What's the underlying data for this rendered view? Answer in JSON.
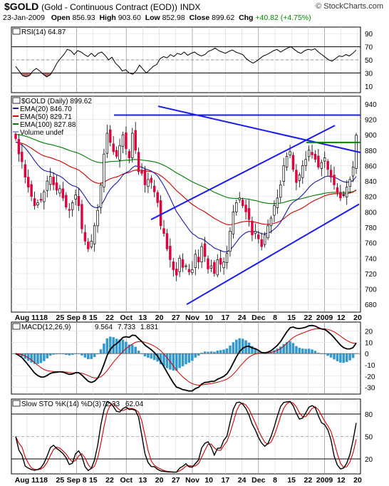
{
  "header": {
    "symbol": "$GOLD",
    "name": "(Gold - Continuous Contract (EOD))",
    "exchange": "INDX",
    "brand": "© StockCharts.com",
    "date": "23-Jan-2009",
    "open_label": "Open",
    "open": "856.93",
    "high_label": "High",
    "high": "903.60",
    "low_label": "Low",
    "low": "852.98",
    "close_label": "Close",
    "close": "899.62",
    "chg_label": "Chg",
    "chg": "+40.82 (+4.75%)"
  },
  "chart_data": [
    {
      "type": "line",
      "panel": "rsi",
      "legend": "RSI(14) 64.87",
      "y_ticks": [
        90,
        70,
        50,
        30,
        10
      ],
      "ylim": [
        0,
        100
      ],
      "reference_lines": [
        70,
        30
      ],
      "color": "#000000",
      "fill_overbought_oversold": "#a05050",
      "values": [
        40,
        33,
        26,
        24,
        26,
        33,
        37,
        33,
        28,
        24,
        27,
        35,
        45,
        52,
        58,
        66,
        64,
        58,
        64,
        62,
        58,
        55,
        60,
        55,
        60,
        62,
        57,
        50,
        54,
        45,
        40,
        33,
        35,
        30,
        28,
        33,
        42,
        36,
        30,
        35,
        40,
        43,
        52,
        55,
        53,
        58,
        55,
        60,
        58,
        62,
        57,
        60,
        62,
        58,
        56,
        58,
        63,
        65,
        68,
        64,
        62,
        60,
        63,
        65,
        62,
        60,
        58,
        52,
        48,
        45,
        48,
        52,
        56,
        58,
        61,
        64,
        66,
        62,
        65,
        68,
        70,
        66,
        62,
        60,
        64,
        66,
        65,
        67,
        62,
        58,
        54,
        50,
        48,
        52,
        56,
        55,
        58,
        56,
        60,
        65
      ]
    },
    {
      "type": "candlestick",
      "panel": "price",
      "legend_title": "$GOLD (Daily) 899.62",
      "y_ticks": [
        940,
        920,
        900,
        880,
        860,
        840,
        820,
        800,
        780,
        760,
        740,
        720,
        700,
        680
      ],
      "ylim": [
        670,
        950
      ],
      "x_ticks": [
        "Aug 11",
        "18",
        "25",
        "Sep 8",
        "15",
        "22",
        "Oct",
        "13",
        "20",
        "27",
        "Nov",
        "10",
        "17",
        "24",
        "Dec",
        "8",
        "15",
        "22",
        "2009",
        "12",
        "20"
      ],
      "close": [
        895,
        875,
        865,
        845,
        832,
        820,
        808,
        812,
        815,
        826,
        840,
        846,
        835,
        828,
        830,
        818,
        806,
        802,
        812,
        822,
        808,
        778,
        762,
        752,
        762,
        782,
        802,
        835,
        875,
        902,
        890,
        878,
        872,
        886,
        900,
        882,
        870,
        902,
        880,
        852,
        850,
        835,
        842,
        838,
        826,
        812,
        782,
        772,
        752,
        738,
        725,
        718,
        740,
        728,
        730,
        722,
        725,
        745,
        735,
        755,
        742,
        726,
        730,
        720,
        738,
        732,
        735,
        746,
        775,
        800,
        812,
        818,
        808,
        800,
        790,
        770,
        775,
        765,
        755,
        770,
        782,
        792,
        808,
        818,
        835,
        860,
        872,
        878,
        855,
        838,
        848,
        860,
        868,
        880,
        874,
        868,
        858,
        864,
        870,
        855,
        845,
        835,
        825,
        818,
        822,
        832,
        842,
        858,
        899.6
      ],
      "series": [
        {
          "name": "EMA(20) 846.70",
          "color": "#1a1aa8"
        },
        {
          "name": "EMA(50) 829.71",
          "color": "#cc0000"
        },
        {
          "name": "EMA(100) 827.88",
          "color": "#007a00"
        },
        {
          "name": "Volume undef",
          "color": "#9999cc"
        }
      ]
    },
    {
      "type": "line",
      "panel": "macd",
      "legend_name": "MACD(12,26,9)",
      "legend_vals": [
        "9.564",
        "7.733",
        "1.831"
      ],
      "legend_colors": [
        "#000000",
        "#cc0000",
        "#1a1aa8"
      ],
      "y_ticks": [
        20,
        10,
        0,
        -10,
        -20,
        -30
      ],
      "ylim": [
        -36,
        28
      ]
    },
    {
      "type": "line",
      "panel": "sto",
      "legend_name": "Slow STO %K(14) %D(3)",
      "legend_vals": [
        "72.33",
        "62.04"
      ],
      "legend_colors": [
        "#000000",
        "#cc0000"
      ],
      "y_ticks": [
        80,
        50,
        20
      ],
      "ylim": [
        0,
        100
      ]
    }
  ]
}
